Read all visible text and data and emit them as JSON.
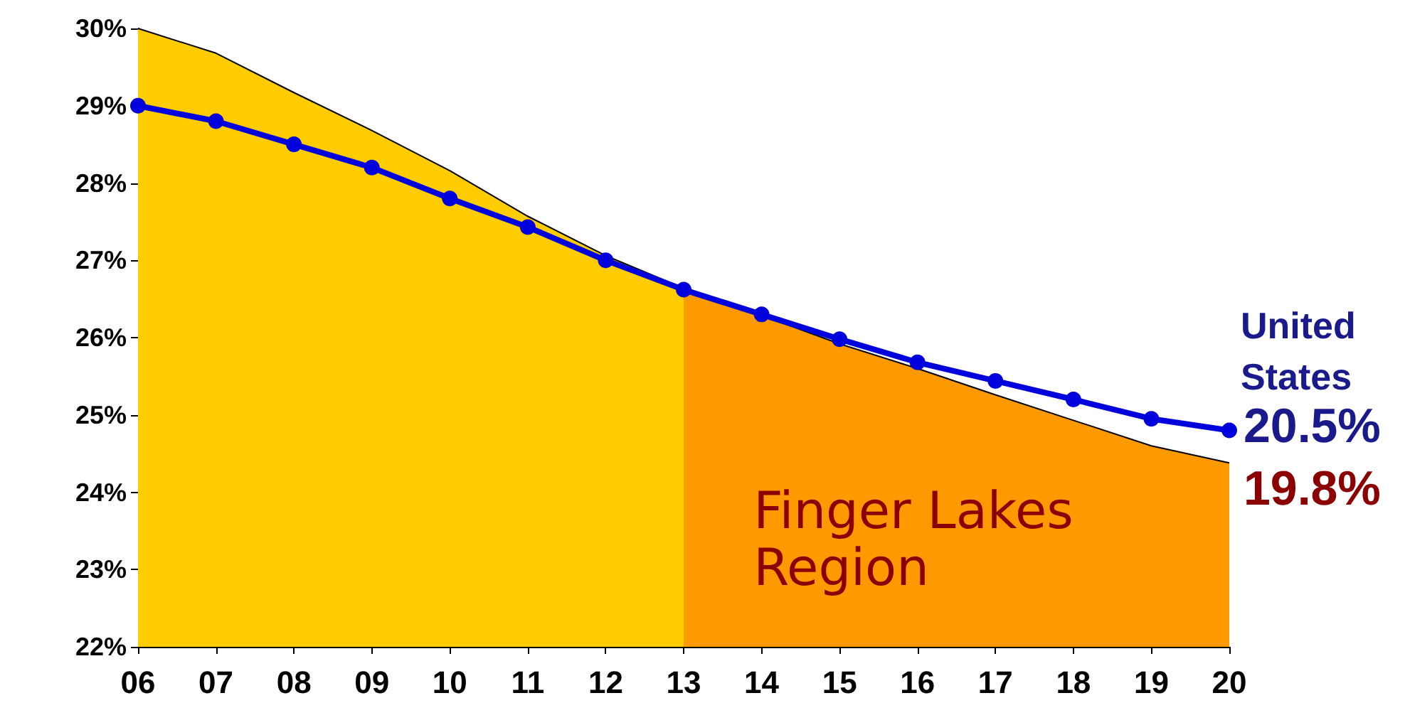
{
  "chart_data": {
    "type": "area",
    "categories": [
      "06",
      "07",
      "08",
      "09",
      "10",
      "11",
      "12",
      "13",
      "14",
      "15",
      "16",
      "17",
      "18",
      "19",
      "20"
    ],
    "series": [
      {
        "marker": "none",
        "color": "#ffcc00",
        "values": [
          30.0,
          29.68,
          29.17,
          28.68,
          28.16,
          27.57,
          27.06,
          26.64,
          null,
          null,
          null,
          null,
          null,
          null,
          null
        ]
      },
      {
        "marker": "none",
        "name": "Finger Lakes Region",
        "color": "#ff9900",
        "values": [
          null,
          null,
          null,
          null,
          null,
          null,
          null,
          26.64,
          26.29,
          25.92,
          25.6,
          25.26,
          24.93,
          24.6,
          24.38
        ]
      },
      {
        "type": "line",
        "marker": "circle",
        "name": "United States",
        "color": "#0000dd",
        "values": [
          29.0,
          28.8,
          28.5,
          28.2,
          27.8,
          27.43,
          27.0,
          26.62,
          26.3,
          25.98,
          25.68,
          25.44,
          25.2,
          24.95,
          24.8
        ]
      }
    ],
    "ylim": [
      22,
      30
    ],
    "yticks": [
      {
        "value": 22,
        "label": "22%"
      },
      {
        "value": 23,
        "label": "23%"
      },
      {
        "value": 24,
        "label": "24%"
      },
      {
        "value": 25,
        "label": "25%"
      },
      {
        "value": 26,
        "label": "26%"
      },
      {
        "value": 27,
        "label": "27%"
      },
      {
        "value": 28,
        "label": "28%"
      },
      {
        "value": 29,
        "label": "29%"
      },
      {
        "value": 30,
        "label": "30%"
      }
    ],
    "annotations": [
      "20.5%",
      "19.8%"
    ],
    "line_style": "solid",
    "grid": false,
    "legend": false
  }
}
